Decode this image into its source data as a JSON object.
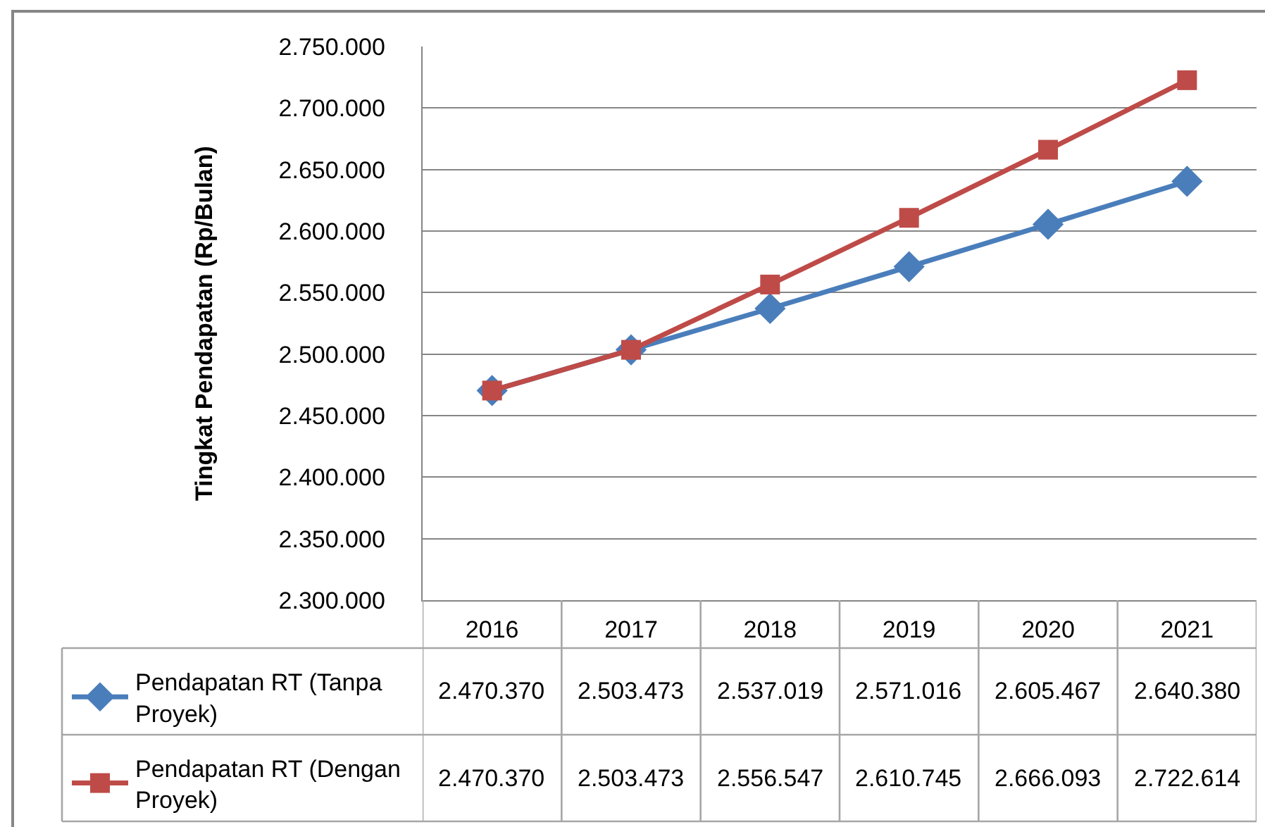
{
  "chart_data": {
    "type": "line",
    "ylabel": "Tingkat Pendapatan (Rp/Bulan)",
    "categories": [
      "2016",
      "2017",
      "2018",
      "2019",
      "2020",
      "2021"
    ],
    "series": [
      {
        "name": "Pendapatan RT (Tanpa Proyek)",
        "color": "#4a7ebb",
        "marker": "diamond",
        "values": [
          2470370,
          2503473,
          2537019,
          2571016,
          2605467,
          2640380
        ],
        "value_labels": [
          "2.470.370",
          "2.503.473",
          "2.537.019",
          "2.571.016",
          "2.605.467",
          "2.640.380"
        ]
      },
      {
        "name": "Pendapatan RT (Dengan Proyek)",
        "color": "#be4b48",
        "marker": "square",
        "values": [
          2470370,
          2503473,
          2556547,
          2610745,
          2666093,
          2722614
        ],
        "value_labels": [
          "2.470.370",
          "2.503.473",
          "2.556.547",
          "2.610.745",
          "2.666.093",
          "2.722.614"
        ]
      }
    ],
    "ylim": [
      2300000,
      2750000
    ],
    "yticks": [
      {
        "value": 2300000,
        "label": "2.300.000"
      },
      {
        "value": 2350000,
        "label": "2.350.000"
      },
      {
        "value": 2400000,
        "label": "2.400.000"
      },
      {
        "value": 2450000,
        "label": "2.450.000"
      },
      {
        "value": 2500000,
        "label": "2.500.000"
      },
      {
        "value": 2550000,
        "label": "2.550.000"
      },
      {
        "value": 2600000,
        "label": "2.600.000"
      },
      {
        "value": 2650000,
        "label": "2.650.000"
      },
      {
        "value": 2700000,
        "label": "2.700.000"
      },
      {
        "value": 2750000,
        "label": "2.750.000"
      }
    ],
    "grid": "y",
    "legend": "bottom left"
  }
}
